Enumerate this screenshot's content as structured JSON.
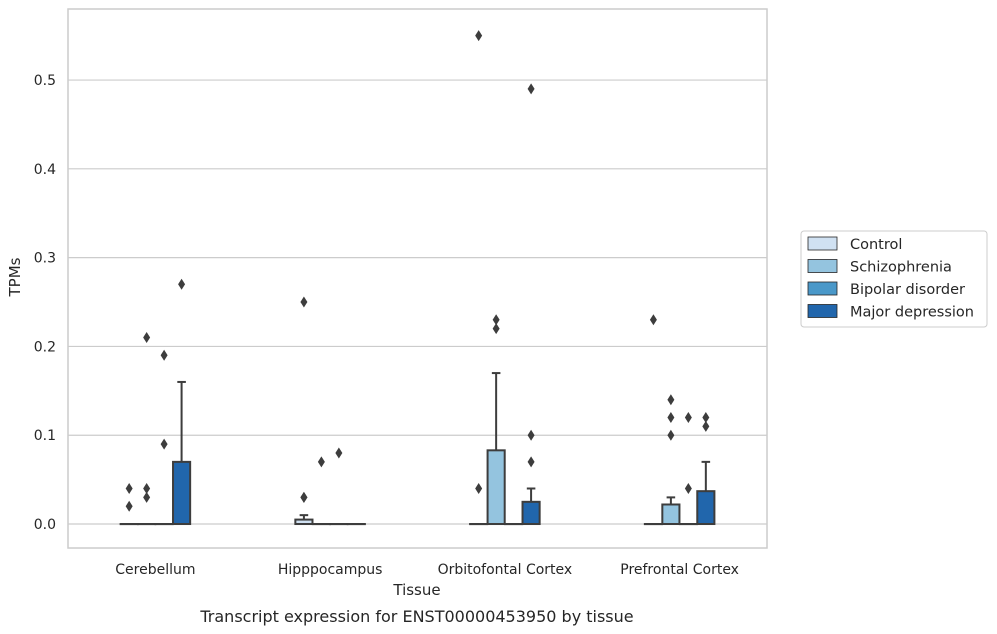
{
  "caption": "Transcript expression for ENST00000453950 by tissue",
  "chart_data": {
    "type": "box",
    "xlabel": "Tissue",
    "ylabel": "TPMs",
    "ylim": [
      -0.027,
      0.58
    ],
    "yticks": [
      0.0,
      0.1,
      0.2,
      0.3,
      0.4,
      0.5
    ],
    "ytick_labels": [
      "0.0",
      "0.1",
      "0.2",
      "0.3",
      "0.4",
      "0.5"
    ],
    "grid": "horizontal",
    "legend_position": "right, outside plot",
    "categories": [
      "Cerebellum",
      "Hipppocampus",
      "Orbitofontal Cortex",
      "Prefrontal Cortex"
    ],
    "series": [
      {
        "name": "Control",
        "color": "#d0e1f2",
        "boxes": [
          {
            "q1": 0,
            "median": 0,
            "q3": 0,
            "whisker_low": 0,
            "whisker_high": 0,
            "outliers": [
              0.04,
              0.02
            ]
          },
          {
            "q1": 0,
            "median": 0,
            "q3": 0.005,
            "whisker_low": 0,
            "whisker_high": 0.01,
            "outliers": [
              0.03,
              0.03,
              0.25
            ]
          },
          {
            "q1": 0,
            "median": 0,
            "q3": 0,
            "whisker_low": 0,
            "whisker_high": 0,
            "outliers": [
              0.04,
              0.55
            ]
          },
          {
            "q1": 0,
            "median": 0,
            "q3": 0,
            "whisker_low": 0,
            "whisker_high": 0,
            "outliers": [
              0.23
            ]
          }
        ]
      },
      {
        "name": "Schizophrenia",
        "color": "#94c4df",
        "boxes": [
          {
            "q1": 0,
            "median": 0,
            "q3": 0,
            "whisker_low": 0,
            "whisker_high": 0,
            "outliers": [
              0.04,
              0.03,
              0.21
            ]
          },
          {
            "q1": 0,
            "median": 0,
            "q3": 0,
            "whisker_low": 0,
            "whisker_high": 0,
            "outliers": [
              0.07
            ]
          },
          {
            "q1": 0,
            "median": 0,
            "q3": 0.083,
            "whisker_low": 0,
            "whisker_high": 0.17,
            "outliers": [
              0.22,
              0.23
            ]
          },
          {
            "q1": 0,
            "median": 0,
            "q3": 0.022,
            "whisker_low": 0,
            "whisker_high": 0.03,
            "outliers": [
              0.1,
              0.12,
              0.14
            ]
          }
        ]
      },
      {
        "name": "Bipolar disorder",
        "color": "#4a98c9",
        "boxes": [
          {
            "q1": 0,
            "median": 0,
            "q3": 0,
            "whisker_low": 0,
            "whisker_high": 0,
            "outliers": [
              0.09,
              0.19
            ]
          },
          {
            "q1": 0,
            "median": 0,
            "q3": 0,
            "whisker_low": 0,
            "whisker_high": 0,
            "outliers": [
              0.08
            ]
          },
          {
            "q1": 0,
            "median": 0,
            "q3": 0,
            "whisker_low": 0,
            "whisker_high": 0,
            "outliers": []
          },
          {
            "q1": 0,
            "median": 0,
            "q3": 0,
            "whisker_low": 0,
            "whisker_high": 0,
            "outliers": [
              0.04,
              0.12
            ]
          }
        ]
      },
      {
        "name": "Major depression",
        "color": "#2166ac",
        "boxes": [
          {
            "q1": 0,
            "median": 0,
            "q3": 0.07,
            "whisker_low": 0,
            "whisker_high": 0.16,
            "outliers": [
              0.27
            ]
          },
          {
            "q1": 0,
            "median": 0,
            "q3": 0,
            "whisker_low": 0,
            "whisker_high": 0,
            "outliers": []
          },
          {
            "q1": 0,
            "median": 0,
            "q3": 0.025,
            "whisker_low": 0,
            "whisker_high": 0.04,
            "outliers": [
              0.07,
              0.1,
              0.49
            ]
          },
          {
            "q1": 0,
            "median": 0,
            "q3": 0.037,
            "whisker_low": 0,
            "whisker_high": 0.07,
            "outliers": [
              0.11,
              0.12
            ]
          }
        ]
      }
    ]
  }
}
